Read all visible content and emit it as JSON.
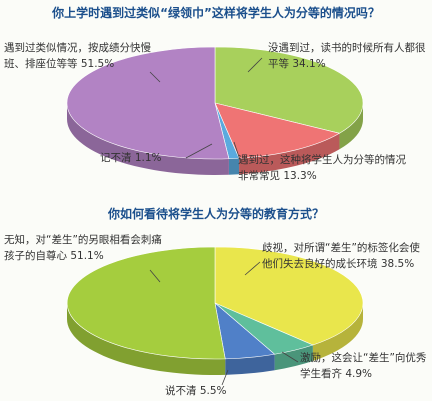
{
  "chart_data": [
    {
      "type": "pie3d",
      "title": "你上学时遇到过类似“绿领巾”这样将学生人为分等的情况吗？",
      "categories": [
        "没遇到过，读书的时候所有人都很平等",
        "遇到过，这种将学生人为分等的情况非常常见",
        "记不清",
        "遇到过类似情况，按成绩分快慢班、排座位等等"
      ],
      "values": [
        34.1,
        13.3,
        1.1,
        51.5
      ],
      "value_labels": [
        "34.1%",
        "13.3%",
        "1.1%",
        "51.5%"
      ],
      "colors": [
        "#a8d05c",
        "#ef7474",
        "#5aaade",
        "#b283c4"
      ]
    },
    {
      "type": "pie3d",
      "title": "你如何看待将学生人为分等的教育方式？",
      "categories": [
        "歧视，对所谓“差生”的标签化会使他们失去良好的成长环境",
        "激励，这会让“差生”向优秀学生看齐",
        "说不清",
        "无知，对“差生”的另眼相看会刺痛孩子的自尊心"
      ],
      "values": [
        38.5,
        4.9,
        5.5,
        51.1
      ],
      "value_labels": [
        "38.5%",
        "4.9%",
        "5.5%",
        "51.1%"
      ],
      "colors": [
        "#e9e64c",
        "#5fbf9c",
        "#5080c8",
        "#a5cd3e"
      ]
    }
  ]
}
